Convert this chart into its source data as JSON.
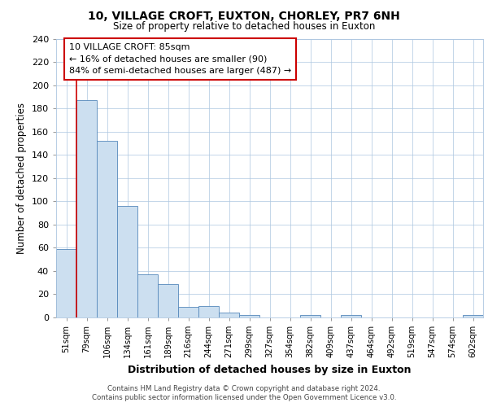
{
  "title1": "10, VILLAGE CROFT, EUXTON, CHORLEY, PR7 6NH",
  "title2": "Size of property relative to detached houses in Euxton",
  "xlabel": "Distribution of detached houses by size in Euxton",
  "ylabel": "Number of detached properties",
  "bar_labels": [
    "51sqm",
    "79sqm",
    "106sqm",
    "134sqm",
    "161sqm",
    "189sqm",
    "216sqm",
    "244sqm",
    "271sqm",
    "299sqm",
    "327sqm",
    "354sqm",
    "382sqm",
    "409sqm",
    "437sqm",
    "464sqm",
    "492sqm",
    "519sqm",
    "547sqm",
    "574sqm",
    "602sqm"
  ],
  "bar_values": [
    59,
    187,
    152,
    96,
    37,
    29,
    9,
    10,
    4,
    2,
    0,
    0,
    2,
    0,
    2,
    0,
    0,
    0,
    0,
    0,
    2
  ],
  "bar_fill_color": "#ccdff0",
  "bar_edge_color": "#5588bb",
  "vline_color": "#cc0000",
  "vline_x_index": 1,
  "ylim": [
    0,
    240
  ],
  "yticks": [
    0,
    20,
    40,
    60,
    80,
    100,
    120,
    140,
    160,
    180,
    200,
    220,
    240
  ],
  "annotation_title": "10 VILLAGE CROFT: 85sqm",
  "annotation_line1": "← 16% of detached houses are smaller (90)",
  "annotation_line2": "84% of semi-detached houses are larger (487) →",
  "footer1": "Contains HM Land Registry data © Crown copyright and database right 2024.",
  "footer2": "Contains public sector information licensed under the Open Government Licence v3.0.",
  "bg_color": "#ffffff",
  "plot_bg_color": "#ffffff",
  "grid_color": "#adc6e0"
}
